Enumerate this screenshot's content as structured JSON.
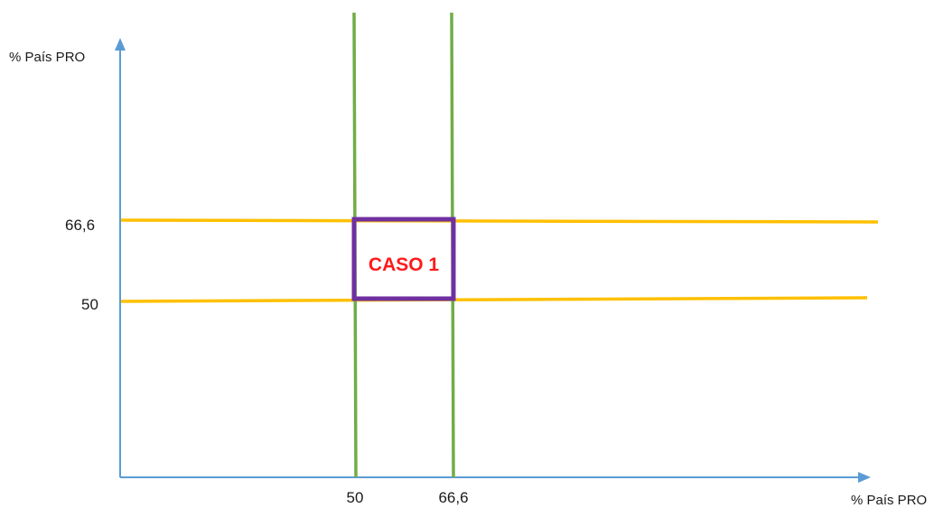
{
  "diagram": {
    "y_axis_label": "% País PRO",
    "x_axis_label": "% País PRO",
    "y_ticks": [
      "66,6",
      "50"
    ],
    "x_ticks": [
      "50",
      "66,6"
    ],
    "region_label": "CASO 1",
    "colors": {
      "axis": "#5b9bd5",
      "horizontal_lines": "#ffc000",
      "vertical_lines": "#70ad47",
      "region_box": "#7030a0",
      "region_text": "#ff1a1a"
    }
  }
}
